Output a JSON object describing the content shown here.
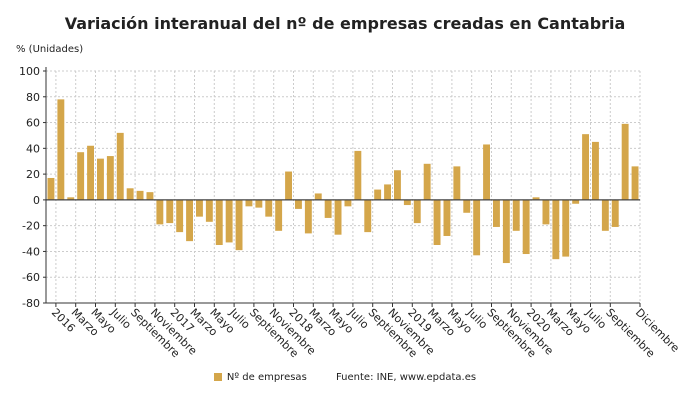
{
  "chart_data": {
    "type": "bar",
    "title": "Variación interanual del nº de empresas creadas en Cantabria",
    "ylabel": "% (Unidades)",
    "xlabel": "",
    "ylim": [
      -80,
      100
    ],
    "yticks": [
      100,
      80,
      60,
      40,
      20,
      0,
      -20,
      -40,
      -60,
      -80
    ],
    "grid": true,
    "legend_position": "bottom",
    "color": "#d4a64a",
    "series": [
      {
        "name": "Nº de empresas",
        "values": [
          17,
          78,
          2,
          37,
          42,
          32,
          34,
          52,
          9,
          7,
          6,
          -19,
          -18,
          -25,
          -32,
          -13,
          -17,
          -35,
          -33,
          -39,
          -5,
          -6,
          -13,
          -24,
          22,
          -7,
          -26,
          5,
          -14,
          -27,
          -5,
          38,
          -25,
          8,
          12,
          23,
          -4,
          -18,
          28,
          -35,
          -28,
          26,
          -10,
          -43,
          43,
          -21,
          -49,
          -24,
          -42,
          2,
          -19,
          -46,
          -44,
          -3,
          51,
          45,
          -24,
          -21,
          59,
          26
        ]
      }
    ],
    "tick_labels": [
      {
        "index": 0,
        "label": "2016"
      },
      {
        "index": 2,
        "label": "Marzo"
      },
      {
        "index": 4,
        "label": "Mayo"
      },
      {
        "index": 6,
        "label": "Julio"
      },
      {
        "index": 8,
        "label": "Septiembre"
      },
      {
        "index": 10,
        "label": "Noviembre"
      },
      {
        "index": 12,
        "label": "2017"
      },
      {
        "index": 14,
        "label": "Marzo"
      },
      {
        "index": 16,
        "label": "Mayo"
      },
      {
        "index": 18,
        "label": "Julio"
      },
      {
        "index": 20,
        "label": "Septiembre"
      },
      {
        "index": 22,
        "label": "Noviembre"
      },
      {
        "index": 24,
        "label": "2018"
      },
      {
        "index": 26,
        "label": "Marzo"
      },
      {
        "index": 28,
        "label": "Mayo"
      },
      {
        "index": 30,
        "label": "Julio"
      },
      {
        "index": 32,
        "label": "Septiembre"
      },
      {
        "index": 34,
        "label": "Noviembre"
      },
      {
        "index": 36,
        "label": "2019"
      },
      {
        "index": 38,
        "label": "Marzo"
      },
      {
        "index": 40,
        "label": "Mayo"
      },
      {
        "index": 42,
        "label": "Julio"
      },
      {
        "index": 44,
        "label": "Septiembre"
      },
      {
        "index": 46,
        "label": "Noviembre"
      },
      {
        "index": 48,
        "label": "2020"
      },
      {
        "index": 50,
        "label": "Marzo"
      },
      {
        "index": 52,
        "label": "Mayo"
      },
      {
        "index": 54,
        "label": "Julio"
      },
      {
        "index": 56,
        "label": "Septiembre"
      },
      {
        "index": 59,
        "label": "Diciembre"
      }
    ],
    "source": "Fuente: INE, www.epdata.es"
  }
}
